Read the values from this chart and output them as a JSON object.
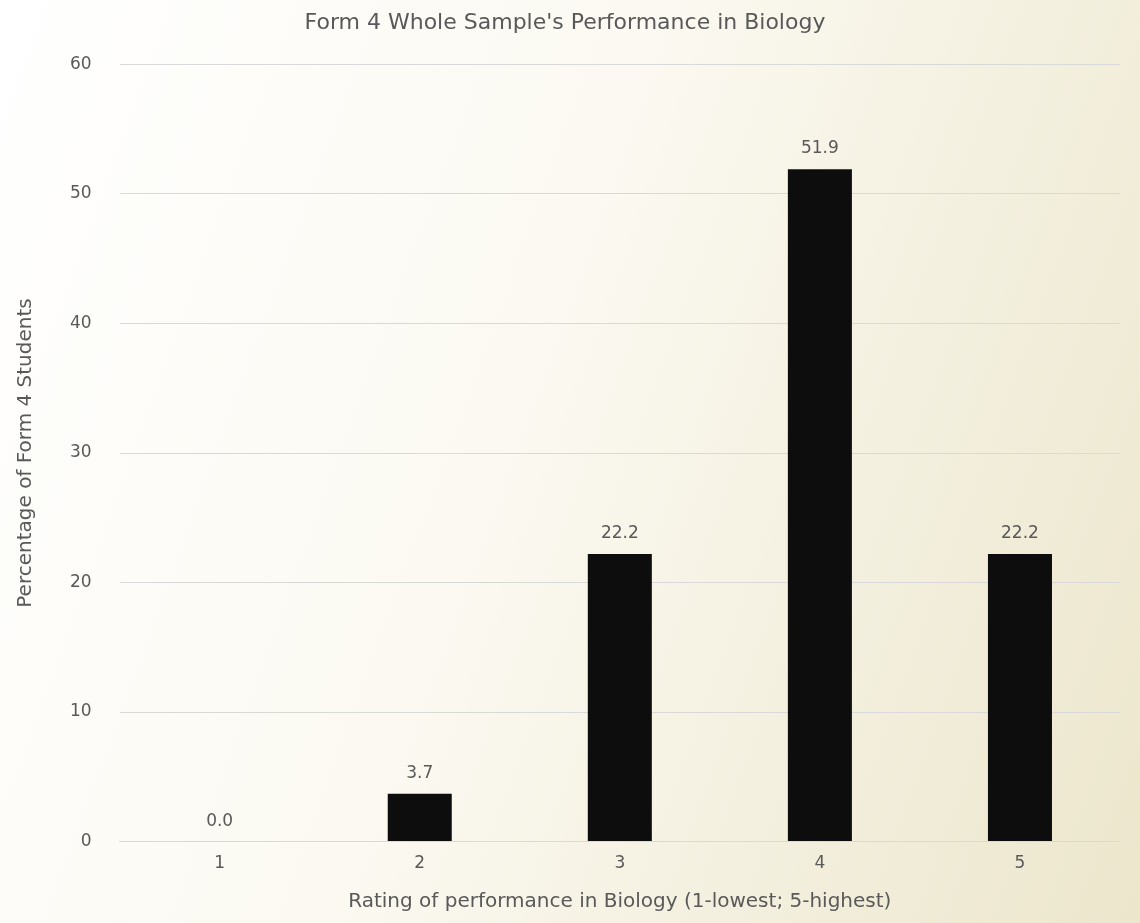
{
  "chart_data": {
    "type": "bar",
    "title": "Form 4 Whole Sample's Performance in Biology",
    "xlabel": "Rating of performance in Biology (1-lowest; 5-highest)",
    "ylabel": "Percentage of Form 4 Students",
    "categories": [
      "1",
      "2",
      "3",
      "4",
      "5"
    ],
    "values": [
      0,
      3.7,
      22.2,
      51.9,
      22.2
    ],
    "value_labels": [
      "0.0",
      "3.7",
      "22.2",
      "51.9",
      "22.2"
    ],
    "color": "#0d0d0d",
    "ylim": [
      0,
      60
    ],
    "yticks": [
      0,
      10,
      20,
      30,
      40,
      50,
      60
    ],
    "grid": "y",
    "legend": false
  }
}
